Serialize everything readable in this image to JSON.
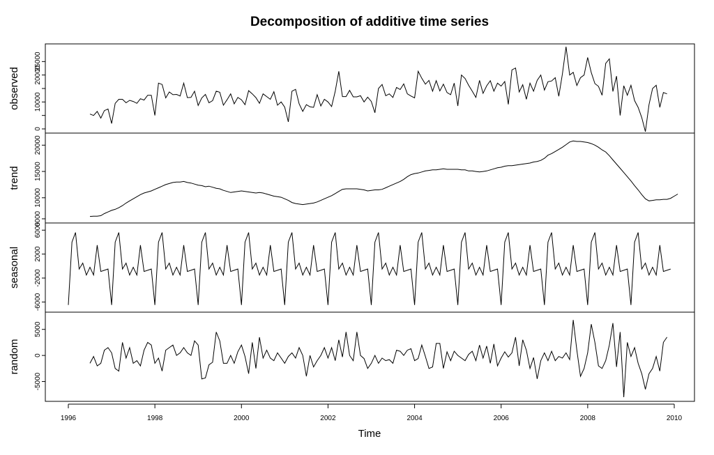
{
  "chart_data": {
    "type": "line",
    "title": "Decomposition of additive time series",
    "xlabel": "Time",
    "xlim": [
      1996,
      2010
    ],
    "x_ticks": [
      1996,
      1998,
      2000,
      2002,
      2004,
      2006,
      2008,
      2010
    ],
    "x_tick_labels": [
      "1996",
      "1998",
      "2000",
      "2002",
      "2004",
      "2006",
      "2008",
      "2010"
    ],
    "panels": [
      {
        "name": "observed",
        "ylabel": "observed",
        "ylim": [
          0,
          30000
        ],
        "y_ticks": [
          0,
          5000,
          10000,
          15000,
          20000,
          25000
        ],
        "y_tick_labels": [
          "0",
          "",
          "10000",
          "",
          "20000",
          "25000"
        ],
        "x_start": 1996.5,
        "x_step": 0.08333,
        "values": [
          5500,
          5000,
          6500,
          4000,
          6800,
          7400,
          2000,
          9500,
          11000,
          11000,
          9700,
          10600,
          10200,
          9500,
          11200,
          10700,
          12500,
          12500,
          5000,
          17000,
          16500,
          11500,
          13700,
          12700,
          12800,
          12200,
          17000,
          11600,
          11700,
          14000,
          8700,
          11500,
          12800,
          9700,
          10500,
          14000,
          13600,
          8800,
          10800,
          13000,
          9300,
          11700,
          10800,
          9000,
          14200,
          13000,
          11600,
          9500,
          13000,
          12000,
          11000,
          13800,
          8800,
          10000,
          8100,
          2600,
          14000,
          14700,
          9300,
          6500,
          9000,
          8200,
          8000,
          12700,
          8500,
          11000,
          10000,
          8300,
          14000,
          21400,
          12000,
          12000,
          14300,
          11900,
          11900,
          12300,
          10000,
          11800,
          10200,
          6000,
          15000,
          16500,
          12300,
          13000,
          11700,
          15400,
          14600,
          16700,
          13000,
          12200,
          11500,
          21400,
          18800,
          16600,
          18000,
          14000,
          17900,
          14100,
          16600,
          13500,
          12700,
          17000,
          8500,
          20000,
          18700,
          16200,
          14000,
          11700,
          18000,
          13200,
          16000,
          17900,
          14000,
          17000,
          15900,
          17600,
          9100,
          21900,
          22600,
          13700,
          16400,
          11000,
          17000,
          14000,
          18000,
          20000,
          14400,
          17500,
          17800,
          19000,
          12100,
          20400,
          30500,
          20000,
          21000,
          16100,
          19000,
          20000,
          26500,
          20900,
          16800,
          15800,
          12500,
          24300,
          26000,
          13900,
          19600,
          5000,
          16000,
          12500,
          16200,
          10500,
          8000,
          4200,
          -1000,
          9000,
          15000,
          16200,
          8000,
          13500,
          13000
        ]
      },
      {
        "name": "trend",
        "ylabel": "trend",
        "ylim": [
          6000,
          21500
        ],
        "y_ticks": [
          6000,
          10000,
          15000,
          20000
        ],
        "y_tick_labels": [
          "6000",
          "10000",
          "15000",
          "20000"
        ],
        "x_start": 1996.5,
        "x_step": 0.08333,
        "values": [
          6450,
          6500,
          6500,
          6600,
          7000,
          7300,
          7600,
          7800,
          8100,
          8500,
          9000,
          9400,
          9800,
          10200,
          10600,
          10900,
          11100,
          11300,
          11600,
          11900,
          12200,
          12500,
          12700,
          12900,
          13000,
          13000,
          13100,
          12900,
          12800,
          12600,
          12400,
          12300,
          12100,
          12200,
          12000,
          11800,
          11700,
          11400,
          11200,
          11000,
          11100,
          11200,
          11300,
          11200,
          11100,
          11000,
          10900,
          11000,
          10900,
          10700,
          10500,
          10300,
          10200,
          10100,
          9800,
          9500,
          9100,
          8900,
          8800,
          8700,
          8800,
          8900,
          9000,
          9200,
          9500,
          9800,
          10100,
          10400,
          10800,
          11200,
          11600,
          11700,
          11700,
          11700,
          11700,
          11600,
          11500,
          11300,
          11400,
          11500,
          11500,
          11600,
          11900,
          12200,
          12500,
          12800,
          13100,
          13500,
          14000,
          14400,
          14600,
          14700,
          14900,
          15100,
          15200,
          15300,
          15300,
          15400,
          15500,
          15400,
          15400,
          15400,
          15400,
          15300,
          15300,
          15100,
          15100,
          15000,
          14900,
          15000,
          15100,
          15300,
          15500,
          15700,
          15800,
          16000,
          16100,
          16100,
          16200,
          16300,
          16400,
          16500,
          16600,
          16800,
          16900,
          17100,
          17500,
          18100,
          18400,
          18800,
          19200,
          19600,
          20100,
          20600,
          20800,
          20700,
          20700,
          20600,
          20500,
          20300,
          20000,
          19600,
          19100,
          18700,
          18000,
          17200,
          16400,
          15600,
          14800,
          14000,
          13200,
          12300,
          11500,
          10600,
          9800,
          9400,
          9500,
          9600,
          9600,
          9700,
          9700,
          9900,
          10300,
          10700
        ]
      },
      {
        "name": "seasonal",
        "ylabel": "seasonal",
        "ylim": [
          -7000,
          6500
        ],
        "y_ticks": [
          -6000,
          -2000,
          2000,
          6000
        ],
        "y_tick_labels": [
          "-6000",
          "-2000",
          "2000",
          "6000"
        ],
        "x_start": 1996.0,
        "x_step": 0.08333,
        "values": [
          -6500,
          4000,
          5600,
          -500,
          500,
          -1500,
          -200,
          -1500,
          3500,
          -900,
          -700,
          -500,
          -6500,
          4000,
          5600,
          -500,
          500,
          -1500,
          -200,
          -1500,
          3500,
          -900,
          -700,
          -500,
          -6500,
          4000,
          5600,
          -500,
          500,
          -1500,
          -200,
          -1500,
          3500,
          -900,
          -700,
          -500,
          -6500,
          4000,
          5600,
          -500,
          500,
          -1500,
          -200,
          -1500,
          3500,
          -900,
          -700,
          -500,
          -6500,
          4000,
          5600,
          -500,
          500,
          -1500,
          -200,
          -1500,
          3500,
          -900,
          -700,
          -500,
          -6500,
          4000,
          5600,
          -500,
          500,
          -1500,
          -200,
          -1500,
          3500,
          -900,
          -700,
          -500,
          -6500,
          4000,
          5600,
          -500,
          500,
          -1500,
          -200,
          -1500,
          3500,
          -900,
          -700,
          -500,
          -6500,
          4000,
          5600,
          -500,
          500,
          -1500,
          -200,
          -1500,
          3500,
          -900,
          -700,
          -500,
          -6500,
          4000,
          5600,
          -500,
          500,
          -1500,
          -200,
          -1500,
          3500,
          -900,
          -700,
          -500,
          -6500,
          4000,
          5600,
          -500,
          500,
          -1500,
          -200,
          -1500,
          3500,
          -900,
          -700,
          -500,
          -6500,
          4000,
          5600,
          -500,
          500,
          -1500,
          -200,
          -1500,
          3500,
          -900,
          -700,
          -500,
          -6500,
          4000,
          5600,
          -500,
          500,
          -1500,
          -200,
          -1500,
          3500,
          -900,
          -700,
          -500,
          -6500,
          4000,
          5600,
          -500,
          500,
          -1500,
          -200,
          -1500,
          3500,
          -900,
          -700,
          -500,
          -6500,
          4000,
          5600,
          -500,
          500,
          -1500,
          -200,
          -1500,
          3500,
          -900,
          -700,
          -500
        ]
      },
      {
        "name": "random",
        "ylabel": "random",
        "ylim": [
          -8000,
          7500
        ],
        "y_ticks": [
          -5000,
          0,
          5000
        ],
        "y_tick_labels": [
          "-5000",
          "0",
          "5000"
        ],
        "x_start": 1996.5,
        "x_step": 0.08333,
        "values": [
          -1500,
          -200,
          -2000,
          -1500,
          1000,
          1500,
          500,
          -2500,
          -3000,
          2500,
          -500,
          1500,
          -1500,
          -1000,
          -2000,
          1000,
          2500,
          2000,
          -1500,
          -500,
          -3000,
          1000,
          1500,
          2000,
          0,
          500,
          1500,
          500,
          0,
          2800,
          2000,
          -4500,
          -4300,
          -1800,
          -1300,
          4500,
          2800,
          -1500,
          -1500,
          0,
          -1500,
          700,
          2000,
          -200,
          -3500,
          2500,
          -2500,
          3500,
          -500,
          1000,
          -500,
          -1000,
          500,
          -500,
          -1500,
          -200,
          500,
          -500,
          1500,
          0,
          -4000,
          0,
          -2200,
          -1000,
          0,
          1500,
          -500,
          1500,
          -1000,
          3000,
          -300,
          4500,
          0,
          -1000,
          4500,
          0,
          -600,
          -2500,
          -1500,
          0,
          -1500,
          -500,
          -1000,
          -800,
          -1500,
          1000,
          800,
          0,
          1000,
          1300,
          -1000,
          -600,
          2000,
          -200,
          -2500,
          -2200,
          2300,
          2300,
          -2500,
          700,
          -1000,
          800,
          0,
          -500,
          -1000,
          200,
          800,
          -1000,
          2000,
          -500,
          1800,
          -1500,
          2200,
          -2000,
          -500,
          700,
          -300,
          500,
          3500,
          -2000,
          3000,
          1000,
          -2500,
          -400,
          -4500,
          -1000,
          500,
          -1000,
          800,
          -1000,
          -200,
          -500,
          500,
          -800,
          6800,
          1000,
          -4000,
          -2500,
          500,
          6000,
          2500,
          -2000,
          -2500,
          -1000,
          2000,
          6200,
          -2200,
          4500,
          -8000,
          2500,
          -200,
          1500,
          -1500,
          -3500,
          -6500,
          -3500,
          -2500,
          -200,
          -3000,
          2500,
          3500
        ]
      }
    ]
  }
}
